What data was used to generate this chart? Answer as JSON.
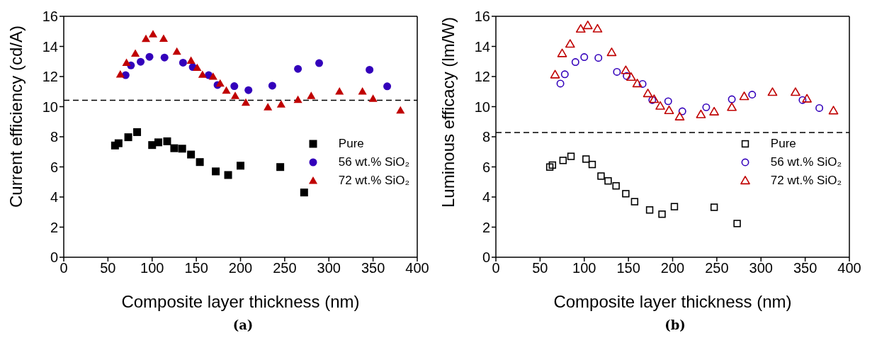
{
  "chart_data": [
    {
      "type": "scatter",
      "xlabel": "Composite layer thickness (nm)",
      "ylabel": "Current efficiency (cd/A)",
      "xlim": [
        0,
        400
      ],
      "xticks": [
        0,
        50,
        100,
        150,
        200,
        250,
        300,
        350,
        400
      ],
      "ylim": [
        0,
        16
      ],
      "yticks": [
        0,
        2,
        4,
        6,
        8,
        10,
        12,
        14,
        16
      ],
      "grid": false,
      "legend": "right",
      "series": [
        {
          "name": "Pure",
          "color": "#000000",
          "marker": "square",
          "x": [
            58,
            62,
            73,
            83,
            100,
            107,
            117,
            125,
            134,
            144,
            154,
            172,
            186,
            200,
            245,
            272
          ],
          "values": [
            7.42,
            7.57,
            7.97,
            8.31,
            7.45,
            7.63,
            7.7,
            7.24,
            7.21,
            6.82,
            6.32,
            5.7,
            5.46,
            6.08,
            5.99,
            4.3
          ]
        },
        {
          "name": "56 wt.% SiO₂",
          "color": "#3300bb",
          "marker": "circle",
          "x": [
            70,
            76,
            87,
            97,
            114,
            135,
            146,
            164,
            174,
            193,
            209,
            236,
            265,
            289,
            346,
            366
          ],
          "values": [
            12.09,
            12.74,
            12.98,
            13.31,
            13.26,
            12.92,
            12.63,
            12.09,
            11.44,
            11.36,
            11.1,
            11.39,
            12.51,
            12.89,
            12.45,
            11.35
          ]
        },
        {
          "name": "72 wt.% SiO₂",
          "color": "#c00000",
          "marker": "triangle",
          "x": [
            64,
            71,
            81,
            93,
            101,
            113,
            128,
            144,
            151,
            157,
            169,
            177,
            184,
            194,
            206,
            231,
            246,
            265,
            280,
            312,
            338,
            350,
            381
          ],
          "values": [
            12.14,
            12.91,
            13.53,
            14.5,
            14.81,
            14.51,
            13.66,
            13.06,
            12.58,
            12.12,
            11.99,
            11.54,
            11.07,
            10.71,
            10.27,
            9.96,
            10.15,
            10.46,
            10.71,
            11.01,
            11.01,
            10.53,
            9.75
          ]
        }
      ],
      "ref_lines": [
        {
          "axis": "y",
          "value": 10.42,
          "color": "#000000",
          "line_style": "dashed"
        }
      ],
      "annotations": [
        "(a)"
      ]
    },
    {
      "type": "scatter",
      "xlabel": "Composite layer thickness (nm)",
      "ylabel": "Luminous efficacy (lm/W)",
      "xlim": [
        0,
        400
      ],
      "xticks": [
        0,
        50,
        100,
        150,
        200,
        250,
        300,
        350,
        400
      ],
      "ylim": [
        0,
        16
      ],
      "yticks": [
        0,
        2,
        4,
        6,
        8,
        10,
        12,
        14,
        16
      ],
      "grid": false,
      "legend": "right",
      "series": [
        {
          "name": "Pure",
          "color": "#000000",
          "marker": "square",
          "x": [
            61,
            64,
            76,
            85,
            102,
            109,
            119,
            127,
            136,
            147,
            157,
            174,
            188,
            202,
            247,
            273
          ],
          "values": [
            5.99,
            6.12,
            6.43,
            6.7,
            6.52,
            6.16,
            5.39,
            5.07,
            4.74,
            4.22,
            3.69,
            3.14,
            2.86,
            3.36,
            3.32,
            2.24
          ]
        },
        {
          "name": "56 wt.% SiO₂",
          "color": "#3300bb",
          "marker": "circle",
          "x": [
            73,
            78,
            90,
            100,
            116,
            137,
            148,
            166,
            177,
            195,
            211,
            238,
            267,
            290,
            347,
            366
          ],
          "values": [
            11.53,
            12.15,
            12.96,
            13.29,
            13.24,
            12.31,
            12.04,
            11.51,
            10.44,
            10.36,
            9.69,
            9.96,
            10.49,
            10.8,
            10.44,
            9.91
          ]
        },
        {
          "name": "72 wt.% SiO₂",
          "color": "#c00000",
          "marker": "triangle",
          "x": [
            67,
            75,
            84,
            96,
            104,
            115,
            131,
            147,
            153,
            160,
            172,
            179,
            186,
            196,
            208,
            232,
            247,
            267,
            281,
            313,
            339,
            352,
            382
          ],
          "values": [
            12.12,
            13.53,
            14.16,
            15.16,
            15.39,
            15.17,
            13.6,
            12.41,
            11.96,
            11.53,
            10.87,
            10.49,
            10.04,
            9.75,
            9.33,
            9.48,
            9.66,
            9.96,
            10.68,
            10.96,
            10.96,
            10.52,
            9.73
          ]
        }
      ],
      "ref_lines": [
        {
          "axis": "y",
          "value": 8.28,
          "color": "#000000",
          "line_style": "dashed"
        }
      ],
      "annotations": [
        "(b)"
      ]
    }
  ]
}
